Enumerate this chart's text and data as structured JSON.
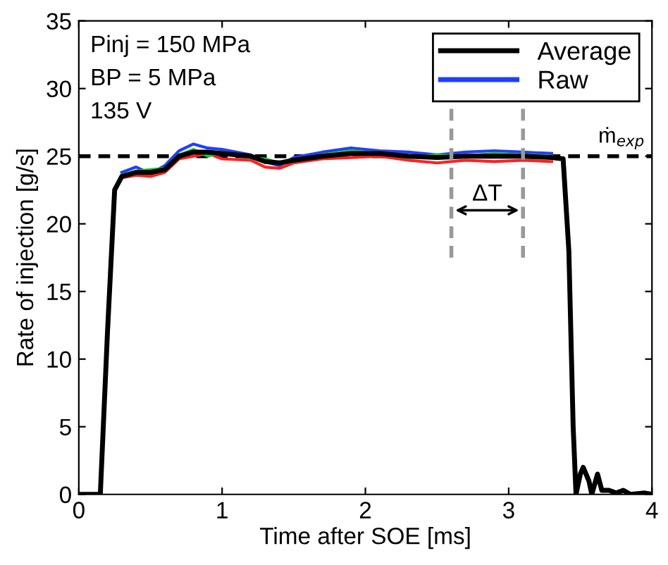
{
  "chart_data": {
    "type": "line",
    "xlabel": "Time after SOE [ms]",
    "ylabel": "Rate of injection [g/s]",
    "x": [
      0,
      0.12,
      0.15,
      0.2,
      0.25,
      0.3,
      0.4,
      0.5,
      0.6,
      0.7,
      0.8,
      0.9,
      1.0,
      1.2,
      1.3,
      1.4,
      1.5,
      1.7,
      1.9,
      2.1,
      2.3,
      2.5,
      2.7,
      2.9,
      3.1,
      3.3,
      3.38,
      3.42,
      3.45,
      3.47,
      3.5,
      3.52,
      3.56,
      3.58,
      3.62,
      3.65,
      3.7,
      3.75,
      3.8,
      3.85,
      3.95,
      4.0
    ],
    "series": [
      {
        "name": "Raw",
        "color": "#1f3fff",
        "x": [
          0.3,
          0.4,
          0.5,
          0.6,
          0.7,
          0.8,
          0.9,
          1.0,
          1.2,
          1.3,
          1.4,
          1.5,
          1.7,
          1.9,
          2.1,
          2.3,
          2.5,
          2.7,
          2.9,
          3.1,
          3.3
        ],
        "values": [
          23.8,
          24.2,
          23.7,
          24.3,
          25.4,
          25.9,
          25.6,
          25.5,
          25.1,
          24.6,
          24.3,
          24.9,
          25.3,
          25.6,
          25.4,
          25.3,
          25.1,
          25.3,
          25.4,
          25.3,
          25.2
        ]
      },
      {
        "color": "#ff2020",
        "x": [
          0.3,
          0.4,
          0.5,
          0.6,
          0.7,
          0.8,
          0.9,
          1.0,
          1.2,
          1.3,
          1.4,
          1.5,
          1.7,
          1.9,
          2.1,
          2.3,
          2.5,
          2.7,
          2.9,
          3.1,
          3.3
        ],
        "values": [
          23.4,
          23.6,
          23.5,
          23.8,
          24.8,
          25.0,
          25.2,
          24.8,
          24.7,
          24.2,
          24.1,
          24.5,
          24.8,
          24.9,
          25.0,
          24.7,
          24.5,
          24.7,
          24.6,
          24.7,
          24.6
        ]
      },
      {
        "color": "#20c040",
        "x": [
          0.3,
          0.4,
          0.5,
          0.6,
          0.7,
          0.8,
          0.9,
          1.0,
          1.2,
          1.3,
          1.4,
          1.5,
          1.7,
          1.9,
          2.1,
          2.3,
          2.5,
          2.7,
          2.9,
          3.1,
          3.3
        ],
        "values": [
          23.6,
          23.9,
          24.0,
          24.1,
          25.1,
          25.5,
          25.0,
          25.3,
          24.9,
          24.8,
          24.5,
          24.6,
          25.1,
          25.4,
          25.2,
          24.9,
          25.1,
          25.0,
          25.2,
          25.1,
          25.0
        ]
      },
      {
        "name": "Average",
        "color": "#000000",
        "values": [
          0,
          0,
          0,
          12,
          22.5,
          23.5,
          23.8,
          23.8,
          24.0,
          25.0,
          25.3,
          25.3,
          25.2,
          25.0,
          24.6,
          24.5,
          24.7,
          25.0,
          25.2,
          25.2,
          25.0,
          24.9,
          25.0,
          25.0,
          25.0,
          24.9,
          24.8,
          18,
          5,
          0,
          1.5,
          2,
          1,
          0,
          1.5,
          0.3,
          0.3,
          0.1,
          0.3,
          0,
          0.1,
          0
        ]
      }
    ],
    "xlim": [
      0,
      4
    ],
    "xticks": [
      0,
      1,
      2,
      3,
      4
    ],
    "ylim": [
      0,
      35
    ],
    "yticks": [
      0,
      5,
      10,
      15,
      20,
      25,
      30,
      35
    ],
    "ref_lines": [
      {
        "axis": "y",
        "value": 25,
        "label": "ṁ$_{exp}$",
        "color": "#000000",
        "line_style": "dashed"
      },
      {
        "axis": "x",
        "value": 2.6,
        "color": "#999999",
        "line_style": "dashed"
      },
      {
        "axis": "x",
        "value": 3.1,
        "color": "#999999",
        "line_style": "dashed"
      }
    ],
    "annotations": [
      "Pinj = 150 MPa",
      "BP = 5 MPa",
      "135 V",
      "ΔT"
    ],
    "legend": "top right",
    "grid": false,
    "marker": "none",
    "line_style": "solid"
  }
}
